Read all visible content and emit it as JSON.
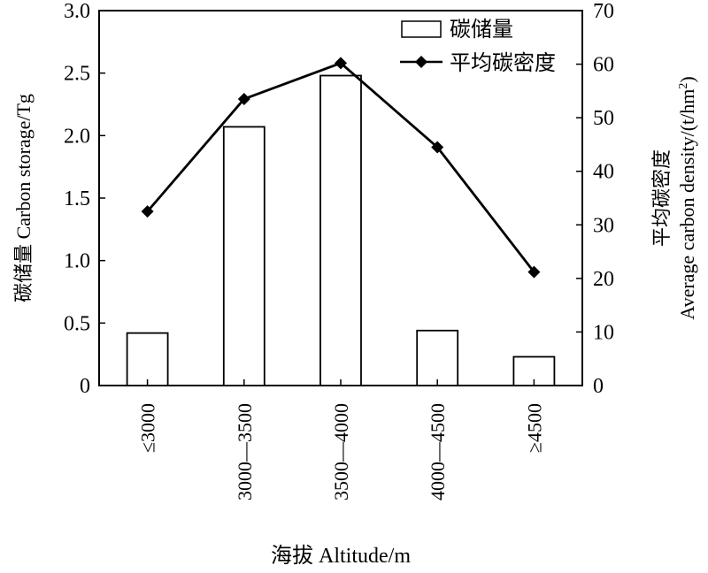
{
  "chart_data": {
    "type": "bar",
    "categories": [
      "≤3000",
      "3000—3500",
      "3500—4000",
      "4000—4500",
      "≥4500"
    ],
    "series": [
      {
        "name": "碳储量",
        "type": "bar",
        "axis": "left",
        "values": [
          0.42,
          2.07,
          2.48,
          0.44,
          0.23
        ]
      },
      {
        "name": "平均碳密度",
        "type": "line",
        "axis": "right",
        "values": [
          32.5,
          53.5,
          60.2,
          44.5,
          21.2
        ]
      }
    ],
    "xlabel": "海拔  Altitude/m",
    "ylabel_left": "碳储量  Carbon storage/Tg",
    "ylabel_right_cn": "平均碳密度",
    "ylabel_right_en": "Average carbon density/(t/hm",
    "ylabel_right_sup": "2",
    "ylabel_right_end": ")",
    "ylim_left": [
      0,
      3.0
    ],
    "ylim_right": [
      0,
      70
    ],
    "yticks_left": [
      "0",
      "0.5",
      "1.0",
      "1.5",
      "2.0",
      "2.5",
      "3.0"
    ],
    "yticks_right": [
      "0",
      "10",
      "20",
      "30",
      "40",
      "50",
      "60",
      "70"
    ],
    "grid": false,
    "legend_position": "top-right"
  }
}
